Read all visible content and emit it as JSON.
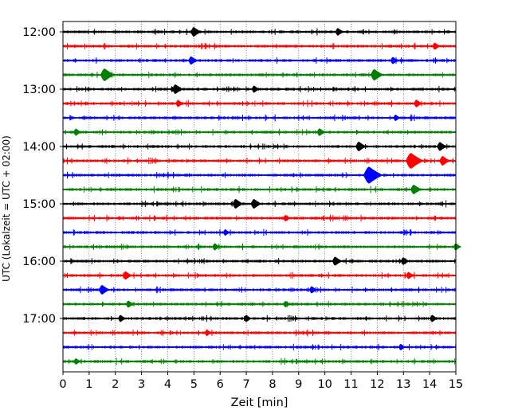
{
  "chart_data": {
    "type": "line",
    "title": "",
    "xlabel": "Zeit  [min]",
    "ylabel": "UTC (Lokalzeit = UTC + 02:00)",
    "xlim": [
      0,
      15
    ],
    "x_ticks": [
      "0",
      "1",
      "2",
      "3",
      "4",
      "5",
      "6",
      "7",
      "8",
      "9",
      "10",
      "11",
      "12",
      "13",
      "14",
      "15"
    ],
    "y_tick_labels": [
      "12:00",
      "13:00",
      "14:00",
      "15:00",
      "16:00",
      "17:00"
    ],
    "y_tick_rows": [
      0,
      4,
      8,
      12,
      16,
      20
    ],
    "grid": "vertical dotted lines at each minute",
    "legend": "none",
    "trace_interval_minutes": 15,
    "color_cycle": [
      "#000000",
      "#ff0000",
      "#0000ff",
      "#008000"
    ],
    "series": [
      {
        "start": "12:00",
        "events": [
          [
            5.0,
            1.0
          ],
          [
            10.5,
            0.7
          ]
        ]
      },
      {
        "start": "12:15",
        "events": [
          [
            14.2,
            0.6
          ]
        ]
      },
      {
        "start": "12:30",
        "events": [
          [
            4.9,
            0.8
          ],
          [
            12.6,
            0.6
          ]
        ]
      },
      {
        "start": "12:45",
        "events": [
          [
            1.6,
            1.5
          ],
          [
            11.9,
            1.3
          ]
        ]
      },
      {
        "start": "13:00",
        "events": [
          [
            4.3,
            1.0
          ],
          [
            7.3,
            0.6
          ]
        ]
      },
      {
        "start": "13:15",
        "events": [
          [
            4.4,
            0.6
          ],
          [
            13.5,
            0.7
          ]
        ]
      },
      {
        "start": "13:30",
        "events": [
          [
            12.7,
            0.5
          ]
        ]
      },
      {
        "start": "13:45",
        "events": [
          [
            0.5,
            0.6
          ],
          [
            9.8,
            0.7
          ]
        ]
      },
      {
        "start": "14:00",
        "events": [
          [
            11.3,
            1.0
          ],
          [
            14.4,
            0.9
          ]
        ]
      },
      {
        "start": "14:15",
        "events": [
          [
            13.3,
            2.0
          ],
          [
            14.5,
            1.0
          ]
        ]
      },
      {
        "start": "14:30",
        "events": [
          [
            11.7,
            2.2
          ]
        ]
      },
      {
        "start": "14:45",
        "events": [
          [
            13.4,
            1.0
          ]
        ]
      },
      {
        "start": "15:00",
        "events": [
          [
            6.6,
            1.0
          ],
          [
            7.3,
            1.0
          ]
        ]
      },
      {
        "start": "15:15",
        "events": [
          [
            8.5,
            0.5
          ]
        ]
      },
      {
        "start": "15:30",
        "events": [
          [
            6.2,
            0.5
          ]
        ]
      },
      {
        "start": "15:45",
        "events": [
          [
            5.8,
            0.6
          ],
          [
            15.0,
            0.6
          ]
        ]
      },
      {
        "start": "16:00",
        "events": [
          [
            10.4,
            0.9
          ],
          [
            13.0,
            0.7
          ]
        ]
      },
      {
        "start": "16:15",
        "events": [
          [
            2.4,
            0.8
          ],
          [
            13.2,
            0.6
          ]
        ]
      },
      {
        "start": "16:30",
        "events": [
          [
            1.5,
            1.0
          ],
          [
            9.5,
            0.6
          ]
        ]
      },
      {
        "start": "16:45",
        "events": [
          [
            2.5,
            0.6
          ],
          [
            8.5,
            0.5
          ]
        ]
      },
      {
        "start": "17:00",
        "events": [
          [
            2.2,
            0.6
          ],
          [
            7.0,
            0.6
          ],
          [
            14.1,
            0.6
          ]
        ]
      },
      {
        "start": "17:15",
        "events": [
          [
            5.5,
            0.5
          ]
        ]
      },
      {
        "start": "17:30",
        "events": [
          [
            12.9,
            0.5
          ]
        ]
      },
      {
        "start": "17:45",
        "events": [
          [
            0.5,
            0.5
          ]
        ]
      }
    ]
  }
}
